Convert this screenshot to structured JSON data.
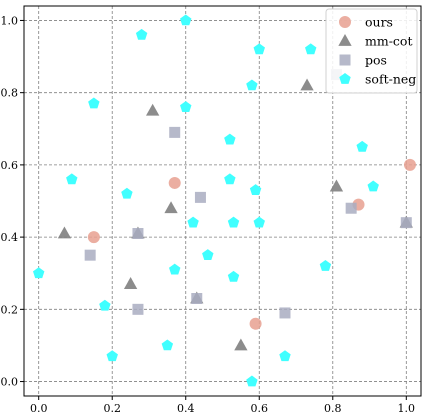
{
  "chart_data": {
    "type": "scatter",
    "xlim": [
      -0.04,
      1.04
    ],
    "ylim": [
      -0.04,
      1.04
    ],
    "x_ticks": [
      "0.0",
      "0.2",
      "0.4",
      "0.6",
      "0.8",
      "1.0"
    ],
    "x_tick_values": [
      0.0,
      0.2,
      0.4,
      0.6,
      0.8,
      1.0
    ],
    "y_ticks": [
      "0.0",
      "0.2",
      "0.4",
      "0.6",
      "0.8",
      "1.0"
    ],
    "y_tick_values": [
      0.0,
      0.2,
      0.4,
      0.6,
      0.8,
      1.0
    ],
    "grid": true,
    "legend_placement": "top-right",
    "series": [
      {
        "name": "ours",
        "marker": "circle",
        "color": "#e8a090",
        "points": [
          [
            0.37,
            0.55
          ],
          [
            0.15,
            0.4
          ],
          [
            0.59,
            0.16
          ],
          [
            0.87,
            0.49
          ],
          [
            1.01,
            0.6
          ]
        ]
      },
      {
        "name": "mm-cot",
        "marker": "triangle",
        "color": "#7f7f7f",
        "points": [
          [
            0.31,
            0.75
          ],
          [
            0.73,
            0.82
          ],
          [
            0.36,
            0.48
          ],
          [
            0.81,
            0.54
          ],
          [
            0.07,
            0.41
          ],
          [
            0.27,
            0.41
          ],
          [
            0.25,
            0.27
          ],
          [
            0.43,
            0.23
          ],
          [
            0.55,
            0.1
          ],
          [
            1.0,
            0.44
          ]
        ]
      },
      {
        "name": "pos",
        "marker": "square",
        "color": "#a9adc1",
        "points": [
          [
            0.37,
            0.69
          ],
          [
            0.44,
            0.51
          ],
          [
            0.27,
            0.41
          ],
          [
            0.14,
            0.35
          ],
          [
            0.43,
            0.23
          ],
          [
            0.27,
            0.2
          ],
          [
            0.67,
            0.19
          ],
          [
            0.85,
            0.48
          ],
          [
            1.0,
            0.44
          ],
          [
            0.81,
            0.85
          ]
        ]
      },
      {
        "name": "soft-neg",
        "marker": "pentagon",
        "color": "#40ffff",
        "points": [
          [
            0.28,
            0.96
          ],
          [
            0.4,
            1.0
          ],
          [
            0.6,
            0.92
          ],
          [
            0.74,
            0.92
          ],
          [
            0.58,
            0.82
          ],
          [
            0.15,
            0.77
          ],
          [
            0.4,
            0.76
          ],
          [
            0.52,
            0.67
          ],
          [
            0.88,
            0.65
          ],
          [
            0.09,
            0.56
          ],
          [
            0.52,
            0.56
          ],
          [
            0.24,
            0.52
          ],
          [
            0.59,
            0.53
          ],
          [
            0.91,
            0.54
          ],
          [
            0.42,
            0.44
          ],
          [
            0.53,
            0.44
          ],
          [
            0.6,
            0.44
          ],
          [
            0.46,
            0.35
          ],
          [
            0.37,
            0.31
          ],
          [
            0.53,
            0.29
          ],
          [
            0.78,
            0.32
          ],
          [
            0.0,
            0.3
          ],
          [
            0.18,
            0.21
          ],
          [
            0.35,
            0.1
          ],
          [
            0.2,
            0.07
          ],
          [
            0.67,
            0.07
          ],
          [
            0.58,
            0.0
          ]
        ]
      }
    ]
  }
}
